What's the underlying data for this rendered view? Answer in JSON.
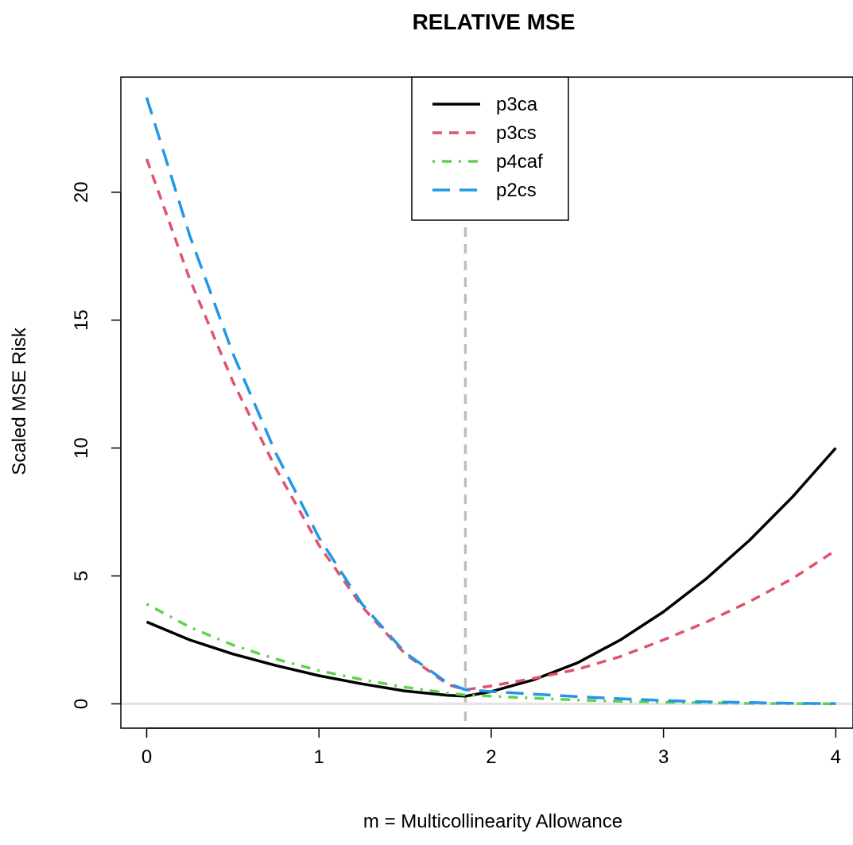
{
  "chart_data": {
    "type": "line",
    "title": "RELATIVE MSE",
    "xlabel": "m = Multicollinearity Allowance",
    "ylabel": "Scaled MSE Risk",
    "xlim": [
      -0.15,
      4.1
    ],
    "ylim": [
      -0.95,
      24.5
    ],
    "xticks": [
      0,
      1,
      2,
      3,
      4
    ],
    "yticks": [
      0,
      5,
      10,
      15,
      20
    ],
    "reference_lines": [
      {
        "orientation": "vertical",
        "x": 1.85,
        "color": "#BEBEBE",
        "style": "dashed"
      },
      {
        "orientation": "horizontal",
        "y": 0,
        "color": "#E5E5E5",
        "style": "solid"
      }
    ],
    "legend": {
      "position": "top-center"
    },
    "series": [
      {
        "name": "p3ca",
        "color": "#000000",
        "dash": "solid",
        "x": [
          0,
          0.25,
          0.5,
          0.75,
          1.0,
          1.25,
          1.5,
          1.75,
          1.85,
          2.0,
          2.25,
          2.5,
          2.75,
          3.0,
          3.25,
          3.5,
          3.75,
          4.0
        ],
        "y": [
          3.2,
          2.5,
          1.95,
          1.5,
          1.1,
          0.78,
          0.5,
          0.33,
          0.3,
          0.48,
          0.95,
          1.6,
          2.5,
          3.6,
          4.9,
          6.4,
          8.1,
          10.0
        ]
      },
      {
        "name": "p3cs",
        "color": "#DF536B",
        "dash": "dashed",
        "x": [
          0,
          0.25,
          0.5,
          0.75,
          1.0,
          1.25,
          1.5,
          1.75,
          1.85,
          2.0,
          2.25,
          2.5,
          2.75,
          3.0,
          3.25,
          3.5,
          3.75,
          4.0
        ],
        "y": [
          21.3,
          16.6,
          12.6,
          9.2,
          6.2,
          3.8,
          1.95,
          0.75,
          0.55,
          0.7,
          1.0,
          1.35,
          1.85,
          2.5,
          3.2,
          4.0,
          4.9,
          6.0
        ]
      },
      {
        "name": "p4caf",
        "color": "#61D04F",
        "dash": "dotdash",
        "x": [
          0,
          0.25,
          0.5,
          0.75,
          1.0,
          1.25,
          1.5,
          1.75,
          1.85,
          2.0,
          2.25,
          2.5,
          2.75,
          3.0,
          3.25,
          3.5,
          3.75,
          4.0
        ],
        "y": [
          3.9,
          3.0,
          2.3,
          1.75,
          1.3,
          0.95,
          0.65,
          0.42,
          0.35,
          0.3,
          0.22,
          0.15,
          0.1,
          0.06,
          0.04,
          0.02,
          0.01,
          0.0
        ]
      },
      {
        "name": "p2cs",
        "color": "#2297E6",
        "dash": "longdash",
        "x": [
          0,
          0.25,
          0.5,
          0.75,
          1.0,
          1.25,
          1.5,
          1.75,
          1.85,
          2.0,
          2.25,
          2.5,
          2.75,
          3.0,
          3.25,
          3.5,
          3.75,
          4.0
        ],
        "y": [
          23.7,
          18.3,
          13.7,
          9.8,
          6.5,
          3.9,
          2.0,
          0.8,
          0.55,
          0.48,
          0.38,
          0.28,
          0.2,
          0.13,
          0.08,
          0.05,
          0.02,
          0.01
        ]
      }
    ]
  }
}
